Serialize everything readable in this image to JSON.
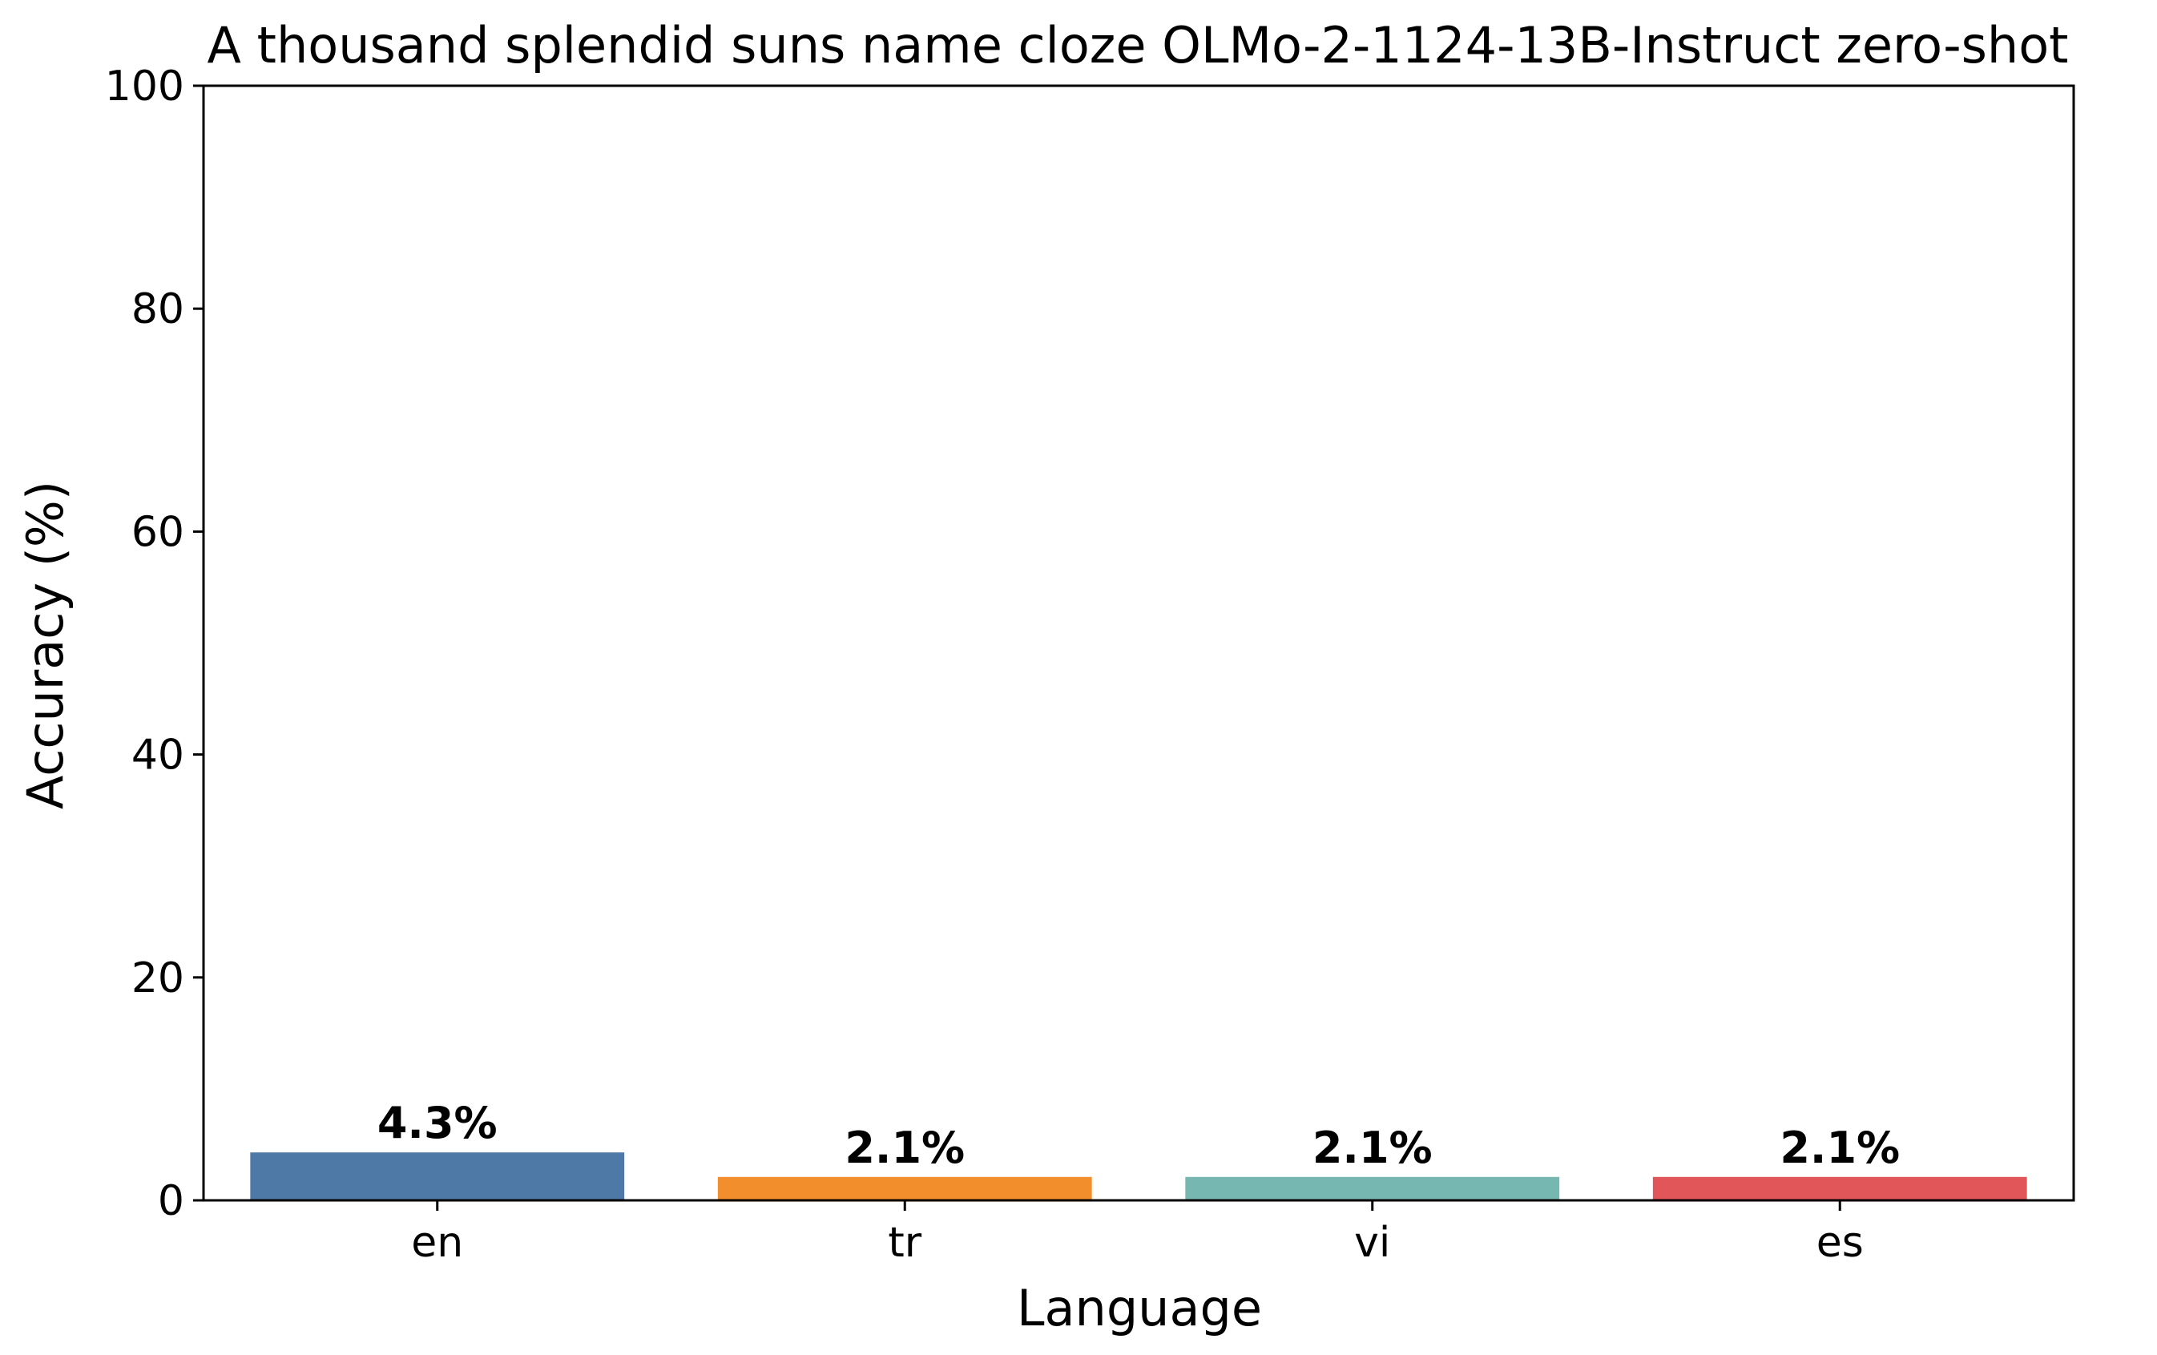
{
  "chart_data": {
    "type": "bar",
    "title": "A thousand splendid suns name cloze OLMo-2-1124-13B-Instruct zero-shot",
    "xlabel": "Language",
    "ylabel": "Accuracy (%)",
    "categories": [
      "en",
      "tr",
      "vi",
      "es"
    ],
    "values": [
      4.3,
      2.1,
      2.1,
      2.1
    ],
    "value_labels": [
      "4.3%",
      "2.1%",
      "2.1%",
      "2.1%"
    ],
    "colors": [
      "#4e79a7",
      "#f28e2b",
      "#76b7b2",
      "#e15759"
    ],
    "ylim": [
      0,
      100
    ],
    "yticks": [
      0,
      20,
      40,
      60,
      80,
      100
    ],
    "ytick_labels": [
      "0",
      "20",
      "40",
      "60",
      "80",
      "100"
    ],
    "grid": false,
    "legend": "none"
  }
}
